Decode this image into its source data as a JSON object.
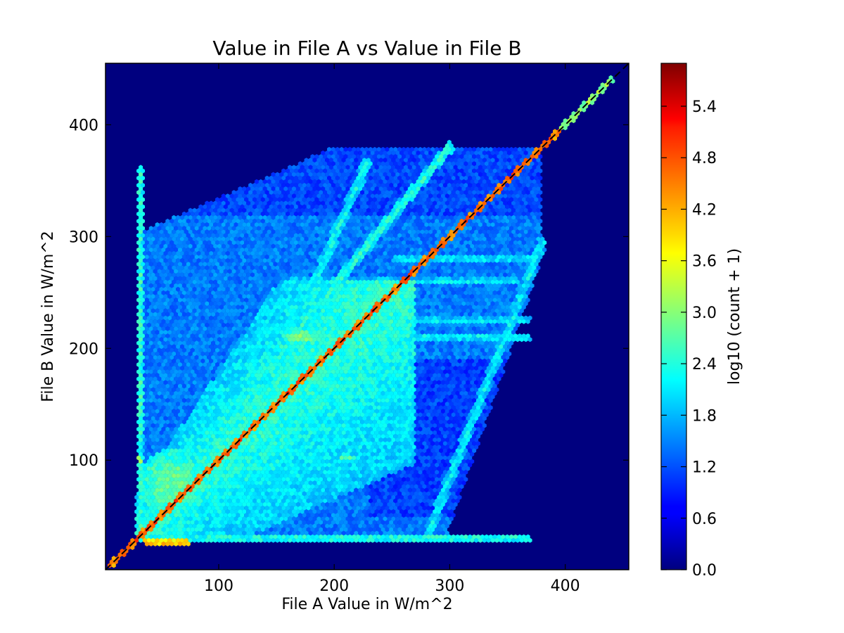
{
  "chart_data": {
    "type": "heatmap",
    "subtype": "hexbin",
    "title": "Value in File A vs Value in File B",
    "xlabel": "File A Value in W/m^2",
    "ylabel": "File B Value in W/m^2",
    "xlim": [
      2,
      455
    ],
    "ylim": [
      2,
      455
    ],
    "xticks": [
      100,
      200,
      300,
      400
    ],
    "yticks": [
      100,
      200,
      300,
      400
    ],
    "grid": false,
    "reference_line": {
      "style": "dashed",
      "color": "#000000",
      "points": [
        [
          2,
          2
        ],
        [
          455,
          455
        ]
      ]
    },
    "colorbar": {
      "label": "log10 (count + 1)",
      "colormap": "jet",
      "range": [
        0,
        5.9
      ],
      "ticks": [
        0.0,
        0.6,
        1.2,
        1.8,
        2.4,
        3.0,
        3.6,
        4.2,
        4.8,
        5.4
      ],
      "tick_labels": [
        "0.0",
        "0.6",
        "1.2",
        "1.8",
        "2.4",
        "3.0",
        "3.6",
        "4.2",
        "4.8",
        "5.4"
      ]
    },
    "density_features": [
      {
        "kind": "diagonal",
        "from": [
          5,
          5
        ],
        "to": [
          395,
          395
        ],
        "value": 4.8
      },
      {
        "kind": "diagonal",
        "from": [
          395,
          395
        ],
        "to": [
          440,
          440
        ],
        "value": 3.2
      },
      {
        "kind": "vertical",
        "x": 32,
        "from": 30,
        "to": 365,
        "value": 2.6
      },
      {
        "kind": "horizontal",
        "y": 30,
        "from": 40,
        "to": 370,
        "value": 2.6
      },
      {
        "kind": "horizontal",
        "y": 26,
        "from": 35,
        "to": 75,
        "value": 4.2
      },
      {
        "kind": "horizontal",
        "y": 210,
        "from": 150,
        "to": 370,
        "value": 2.4
      },
      {
        "kind": "horizontal",
        "y": 225,
        "from": 220,
        "to": 370,
        "value": 2.3
      },
      {
        "kind": "horizontal",
        "y": 260,
        "from": 160,
        "to": 360,
        "value": 2.3
      },
      {
        "kind": "horizontal",
        "y": 280,
        "from": 250,
        "to": 375,
        "value": 2.3
      },
      {
        "kind": "streak",
        "from": [
          155,
          200
        ],
        "to": [
          300,
          380
        ],
        "value": 2.5
      },
      {
        "kind": "streak",
        "from": [
          175,
          240
        ],
        "to": [
          228,
          365
        ],
        "value": 2.3
      },
      {
        "kind": "streak",
        "from": [
          280,
          30
        ],
        "to": [
          380,
          295
        ],
        "value": 2.2
      },
      {
        "kind": "streak",
        "from": [
          40,
          60
        ],
        "to": [
          250,
          245
        ],
        "value": 2.4
      },
      {
        "kind": "blob",
        "center": [
          212,
          102
        ],
        "spread": [
          8,
          3
        ],
        "value": 2.8
      },
      {
        "kind": "blob",
        "center": [
          32,
          100
        ],
        "spread": [
          3,
          3
        ],
        "value": 3.4
      },
      {
        "kind": "blob",
        "center": [
          60,
          80
        ],
        "spread": [
          30,
          30
        ],
        "value": 2.8
      },
      {
        "kind": "blob",
        "center": [
          170,
          210
        ],
        "spread": [
          15,
          6
        ],
        "value": 3.0
      }
    ]
  }
}
